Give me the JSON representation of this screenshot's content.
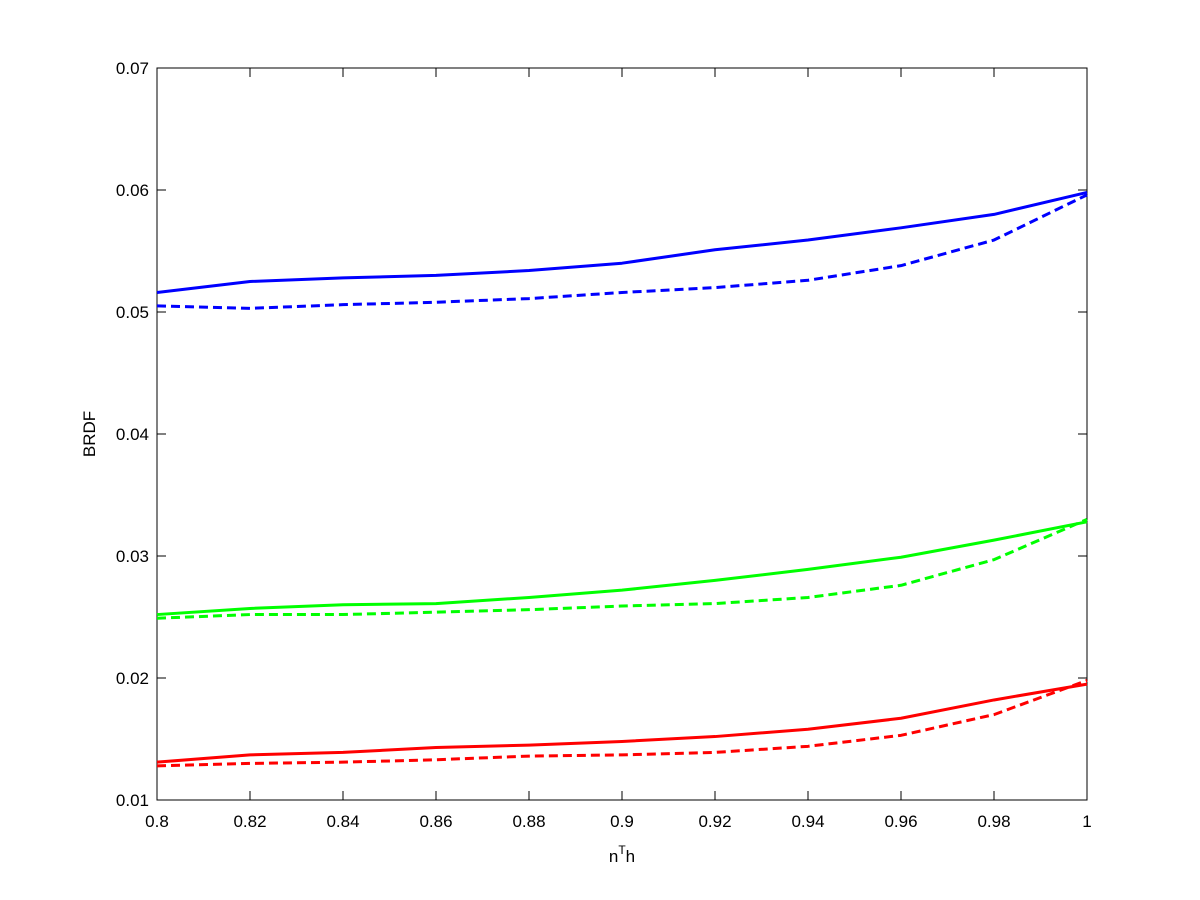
{
  "chart_data": {
    "type": "line",
    "xlabel": [
      "n",
      "T",
      "h"
    ],
    "ylabel": "BRDF",
    "x": [
      0.8,
      0.82,
      0.84,
      0.86,
      0.88,
      0.9,
      0.92,
      0.94,
      0.96,
      0.98,
      1
    ],
    "series": [
      {
        "color": "#0000ff",
        "dash": "solid",
        "values": [
          0.0516,
          0.0525,
          0.0528,
          0.053,
          0.0534,
          0.054,
          0.0551,
          0.0559,
          0.0569,
          0.058,
          0.0598
        ]
      },
      {
        "color": "#0000ff",
        "dash": "dashed",
        "values": [
          0.0505,
          0.0503,
          0.0506,
          0.0508,
          0.0511,
          0.0516,
          0.052,
          0.0526,
          0.0538,
          0.0559,
          0.0596
        ]
      },
      {
        "color": "#00ff00",
        "dash": "solid",
        "values": [
          0.0252,
          0.0257,
          0.026,
          0.0261,
          0.0266,
          0.0272,
          0.028,
          0.0289,
          0.0299,
          0.0313,
          0.0328
        ]
      },
      {
        "color": "#00ff00",
        "dash": "dashed",
        "values": [
          0.0249,
          0.0252,
          0.0252,
          0.0254,
          0.0256,
          0.0259,
          0.0261,
          0.0266,
          0.0276,
          0.0297,
          0.033
        ]
      },
      {
        "color": "#ff0000",
        "dash": "solid",
        "values": [
          0.0131,
          0.0137,
          0.0139,
          0.0143,
          0.0145,
          0.0148,
          0.0152,
          0.0158,
          0.0167,
          0.0182,
          0.0195
        ]
      },
      {
        "color": "#ff0000",
        "dash": "dashed",
        "values": [
          0.0128,
          0.013,
          0.0131,
          0.0133,
          0.0136,
          0.0137,
          0.0139,
          0.0144,
          0.0153,
          0.017,
          0.0198
        ]
      }
    ],
    "xlim": [
      0.8,
      1
    ],
    "xticks": [
      0.8,
      0.82,
      0.84,
      0.86,
      0.88,
      0.9,
      0.92,
      0.94,
      0.96,
      0.98,
      1
    ],
    "ylim": [
      0.01,
      0.07
    ],
    "yticks": [
      0.01,
      0.02,
      0.03,
      0.04,
      0.05,
      0.06,
      0.07
    ],
    "grid": false
  }
}
